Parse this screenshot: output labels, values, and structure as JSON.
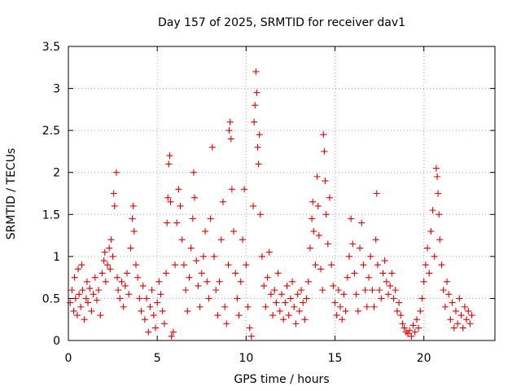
{
  "chart_data": {
    "type": "scatter",
    "title": "Day 157 of 2025, SRMTID for receiver dav1",
    "xlabel": "GPS time / hours",
    "ylabel": "SRMTID / TECUs",
    "xlim": [
      0,
      24
    ],
    "ylim": [
      0,
      3.5
    ],
    "xticks": [
      0,
      5,
      10,
      15,
      20
    ],
    "xtick_labels": [
      "0",
      "5",
      "10",
      "15",
      "20"
    ],
    "yticks": [
      0,
      0.5,
      1,
      1.5,
      2,
      2.5,
      3,
      3.5
    ],
    "ytick_labels": [
      "0",
      "0.5",
      "1",
      "1.5",
      "2",
      "2.5",
      "3",
      "3.5"
    ],
    "grid": true,
    "marker": "+",
    "color": "#e00000",
    "series": [
      {
        "name": "dav1",
        "points": [
          [
            0.1,
            0.45
          ],
          [
            0.2,
            0.6
          ],
          [
            0.3,
            0.35
          ],
          [
            0.35,
            0.75
          ],
          [
            0.4,
            0.5
          ],
          [
            0.5,
            0.3
          ],
          [
            0.55,
            0.85
          ],
          [
            0.6,
            0.55
          ],
          [
            0.7,
            0.4
          ],
          [
            0.75,
            0.9
          ],
          [
            0.8,
            0.6
          ],
          [
            0.9,
            0.25
          ],
          [
            1.0,
            0.5
          ],
          [
            1.05,
            0.7
          ],
          [
            1.1,
            0.45
          ],
          [
            1.2,
            0.62
          ],
          [
            1.3,
            0.35
          ],
          [
            1.4,
            0.55
          ],
          [
            1.5,
            0.75
          ],
          [
            1.6,
            0.48
          ],
          [
            1.7,
            0.6
          ],
          [
            1.8,
            0.3
          ],
          [
            1.9,
            0.8
          ],
          [
            2.0,
            0.95
          ],
          [
            2.05,
            1.05
          ],
          [
            2.1,
            0.7
          ],
          [
            2.2,
            0.9
          ],
          [
            2.3,
            1.1
          ],
          [
            2.35,
            0.85
          ],
          [
            2.4,
            1.2
          ],
          [
            2.5,
            1.0
          ],
          [
            2.55,
            1.75
          ],
          [
            2.6,
            1.6
          ],
          [
            2.7,
            2.0
          ],
          [
            2.75,
            0.75
          ],
          [
            2.8,
            0.6
          ],
          [
            2.9,
            0.5
          ],
          [
            3.0,
            0.7
          ],
          [
            3.1,
            0.4
          ],
          [
            3.2,
            0.65
          ],
          [
            3.3,
            0.8
          ],
          [
            3.4,
            0.55
          ],
          [
            3.5,
            1.1
          ],
          [
            3.6,
            1.45
          ],
          [
            3.65,
            1.6
          ],
          [
            3.7,
            1.3
          ],
          [
            3.8,
            0.9
          ],
          [
            3.9,
            0.75
          ],
          [
            4.0,
            0.5
          ],
          [
            4.1,
            0.35
          ],
          [
            4.2,
            0.65
          ],
          [
            4.3,
            0.25
          ],
          [
            4.4,
            0.5
          ],
          [
            4.5,
            0.1
          ],
          [
            4.6,
            0.4
          ],
          [
            4.7,
            0.6
          ],
          [
            4.8,
            0.3
          ],
          [
            4.9,
            0.15
          ],
          [
            5.0,
            0.45
          ],
          [
            5.1,
            0.7
          ],
          [
            5.2,
            0.55
          ],
          [
            5.3,
            0.35
          ],
          [
            5.4,
            0.2
          ],
          [
            5.5,
            0.8
          ],
          [
            5.55,
            1.4
          ],
          [
            5.6,
            1.7
          ],
          [
            5.65,
            2.1
          ],
          [
            5.7,
            2.2
          ],
          [
            5.75,
            1.65
          ],
          [
            5.8,
            0.05
          ],
          [
            5.9,
            0.1
          ],
          [
            6.0,
            0.9
          ],
          [
            6.1,
            1.4
          ],
          [
            6.2,
            1.8
          ],
          [
            6.3,
            1.6
          ],
          [
            6.4,
            1.2
          ],
          [
            6.5,
            0.9
          ],
          [
            6.6,
            0.6
          ],
          [
            6.7,
            0.35
          ],
          [
            6.8,
            0.75
          ],
          [
            6.9,
            1.1
          ],
          [
            7.0,
            1.45
          ],
          [
            7.05,
            2.0
          ],
          [
            7.1,
            1.7
          ],
          [
            7.2,
            0.95
          ],
          [
            7.3,
            0.65
          ],
          [
            7.4,
            0.4
          ],
          [
            7.5,
            0.8
          ],
          [
            7.6,
            1.0
          ],
          [
            7.7,
            1.3
          ],
          [
            7.8,
            0.7
          ],
          [
            7.9,
            0.5
          ],
          [
            8.0,
            1.45
          ],
          [
            8.1,
            2.3
          ],
          [
            8.2,
            1.0
          ],
          [
            8.3,
            0.6
          ],
          [
            8.4,
            0.3
          ],
          [
            8.5,
            0.7
          ],
          [
            8.6,
            1.2
          ],
          [
            8.7,
            1.65
          ],
          [
            8.8,
            0.4
          ],
          [
            8.9,
            0.2
          ],
          [
            9.0,
            0.9
          ],
          [
            9.05,
            2.5
          ],
          [
            9.1,
            2.6
          ],
          [
            9.15,
            2.4
          ],
          [
            9.2,
            1.8
          ],
          [
            9.3,
            1.3
          ],
          [
            9.4,
            0.8
          ],
          [
            9.5,
            0.5
          ],
          [
            9.6,
            0.3
          ],
          [
            9.7,
            0.7
          ],
          [
            9.8,
            1.2
          ],
          [
            9.9,
            1.8
          ],
          [
            10.0,
            0.9
          ],
          [
            10.1,
            0.4
          ],
          [
            10.2,
            0.15
          ],
          [
            10.3,
            0.05
          ],
          [
            10.4,
            1.6
          ],
          [
            10.45,
            2.6
          ],
          [
            10.5,
            2.8
          ],
          [
            10.55,
            3.2
          ],
          [
            10.6,
            2.95
          ],
          [
            10.65,
            2.3
          ],
          [
            10.7,
            2.1
          ],
          [
            10.75,
            2.45
          ],
          [
            10.8,
            1.5
          ],
          [
            10.9,
            1.0
          ],
          [
            11.0,
            0.65
          ],
          [
            11.1,
            0.4
          ],
          [
            11.2,
            0.75
          ],
          [
            11.3,
            1.05
          ],
          [
            11.4,
            0.55
          ],
          [
            11.5,
            0.3
          ],
          [
            11.6,
            0.6
          ],
          [
            11.7,
            0.45
          ],
          [
            11.8,
            0.8
          ],
          [
            11.9,
            0.35
          ],
          [
            12.0,
            0.55
          ],
          [
            12.1,
            0.25
          ],
          [
            12.2,
            0.45
          ],
          [
            12.3,
            0.65
          ],
          [
            12.4,
            0.3
          ],
          [
            12.5,
            0.5
          ],
          [
            12.6,
            0.7
          ],
          [
            12.7,
            0.4
          ],
          [
            12.8,
            0.2
          ],
          [
            12.9,
            0.55
          ],
          [
            13.0,
            0.35
          ],
          [
            13.1,
            0.6
          ],
          [
            13.2,
            0.45
          ],
          [
            13.3,
            0.25
          ],
          [
            13.4,
            0.5
          ],
          [
            13.5,
            0.7
          ],
          [
            13.6,
            1.1
          ],
          [
            13.7,
            1.45
          ],
          [
            13.75,
            1.65
          ],
          [
            13.8,
            1.3
          ],
          [
            13.9,
            0.9
          ],
          [
            14.0,
            1.95
          ],
          [
            14.05,
            1.6
          ],
          [
            14.1,
            1.25
          ],
          [
            14.2,
            0.85
          ],
          [
            14.3,
            0.6
          ],
          [
            14.35,
            2.45
          ],
          [
            14.4,
            2.25
          ],
          [
            14.45,
            1.9
          ],
          [
            14.5,
            1.5
          ],
          [
            14.6,
            1.15
          ],
          [
            14.7,
            1.7
          ],
          [
            14.8,
            0.9
          ],
          [
            14.9,
            0.65
          ],
          [
            15.0,
            0.45
          ],
          [
            15.1,
            0.3
          ],
          [
            15.2,
            0.6
          ],
          [
            15.3,
            0.4
          ],
          [
            15.4,
            0.25
          ],
          [
            15.5,
            0.55
          ],
          [
            15.6,
            0.35
          ],
          [
            15.7,
            0.75
          ],
          [
            15.8,
            1.0
          ],
          [
            15.9,
            1.45
          ],
          [
            16.0,
            1.15
          ],
          [
            16.1,
            0.8
          ],
          [
            16.2,
            0.55
          ],
          [
            16.3,
            0.35
          ],
          [
            16.4,
            1.1
          ],
          [
            16.5,
            1.4
          ],
          [
            16.6,
            0.9
          ],
          [
            16.7,
            0.6
          ],
          [
            16.8,
            0.4
          ],
          [
            16.9,
            0.75
          ],
          [
            17.0,
            1.0
          ],
          [
            17.1,
            0.6
          ],
          [
            17.2,
            0.4
          ],
          [
            17.3,
            1.2
          ],
          [
            17.35,
            1.75
          ],
          [
            17.4,
            0.9
          ],
          [
            17.5,
            0.6
          ],
          [
            17.6,
            0.5
          ],
          [
            17.7,
            0.8
          ],
          [
            17.8,
            0.95
          ],
          [
            17.9,
            0.7
          ],
          [
            18.0,
            0.55
          ],
          [
            18.1,
            0.65
          ],
          [
            18.2,
            0.8
          ],
          [
            18.3,
            0.5
          ],
          [
            18.4,
            0.6
          ],
          [
            18.5,
            0.35
          ],
          [
            18.6,
            0.45
          ],
          [
            18.7,
            0.3
          ],
          [
            18.8,
            0.2
          ],
          [
            18.9,
            0.15
          ],
          [
            19.0,
            0.1
          ],
          [
            19.1,
            0.08
          ],
          [
            19.2,
            0.12
          ],
          [
            19.3,
            0.05
          ],
          [
            19.4,
            0.18
          ],
          [
            19.5,
            0.1
          ],
          [
            19.6,
            0.25
          ],
          [
            19.7,
            0.15
          ],
          [
            19.8,
            0.35
          ],
          [
            19.9,
            0.5
          ],
          [
            20.0,
            0.7
          ],
          [
            20.1,
            0.9
          ],
          [
            20.2,
            1.1
          ],
          [
            20.3,
            0.8
          ],
          [
            20.4,
            1.3
          ],
          [
            20.5,
            1.55
          ],
          [
            20.6,
            1.0
          ],
          [
            20.7,
            2.05
          ],
          [
            20.75,
            1.95
          ],
          [
            20.8,
            1.75
          ],
          [
            20.85,
            1.5
          ],
          [
            20.9,
            1.2
          ],
          [
            21.0,
            0.9
          ],
          [
            21.1,
            0.6
          ],
          [
            21.2,
            0.4
          ],
          [
            21.3,
            0.7
          ],
          [
            21.4,
            0.55
          ],
          [
            21.5,
            0.25
          ],
          [
            21.6,
            0.45
          ],
          [
            21.7,
            0.15
          ],
          [
            21.8,
            0.35
          ],
          [
            21.9,
            0.2
          ],
          [
            22.0,
            0.5
          ],
          [
            22.1,
            0.3
          ],
          [
            22.2,
            0.15
          ],
          [
            22.3,
            0.4
          ],
          [
            22.4,
            0.25
          ],
          [
            22.5,
            0.35
          ],
          [
            22.6,
            0.2
          ],
          [
            22.7,
            0.3
          ]
        ]
      }
    ]
  }
}
